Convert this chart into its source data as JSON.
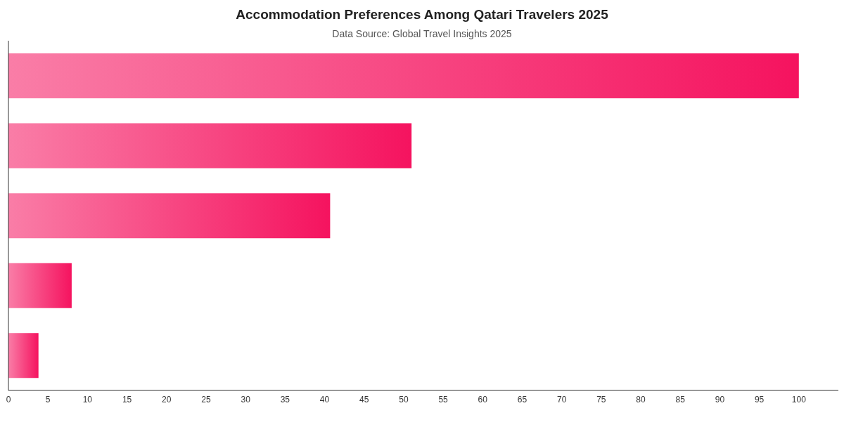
{
  "chart_data": {
    "type": "bar",
    "orientation": "horizontal",
    "title": "Accommodation Preferences Among Qatari Travelers 2025",
    "subtitle": "Data Source: Global Travel Insights 2025",
    "categories": [
      null,
      null,
      null,
      null,
      null
    ],
    "values": [
      100,
      51,
      40.7,
      8,
      3.8
    ],
    "color": "#f5135f",
    "xlim": [
      0,
      105
    ],
    "xticks": [
      0,
      5,
      10,
      15,
      20,
      25,
      30,
      35,
      40,
      45,
      50,
      55,
      60,
      65,
      70,
      75,
      80,
      85,
      90,
      95,
      100
    ],
    "grid": false,
    "legend": false
  }
}
